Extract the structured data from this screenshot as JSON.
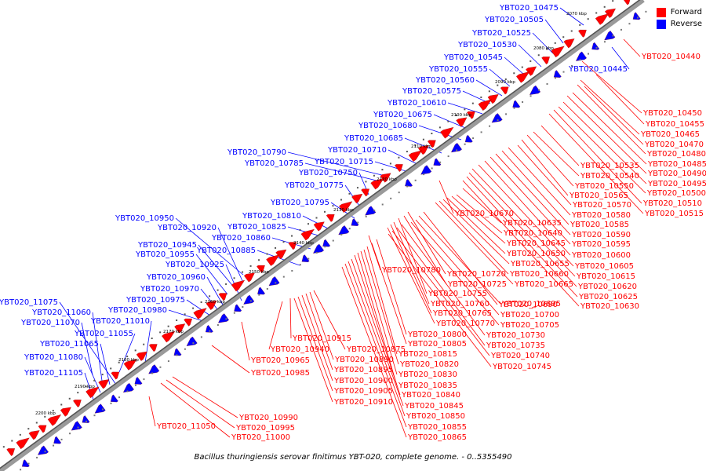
{
  "caption": "Bacillus thuringiensis serovar finitimus YBT-020, complete genome. - 0..5355490",
  "legend": [
    {
      "label": "Forward",
      "color": "#ff0000"
    },
    {
      "label": "Reverse",
      "color": "#0000ff"
    }
  ],
  "colors": {
    "forward": "#ff0000",
    "reverse": "#0000ff",
    "backbone": "#808080"
  },
  "ticks": [
    "2070 kbp",
    "2080 kbp",
    "2090 kbp",
    "2100 kbp",
    "2110 kbp",
    "2120 kbp",
    "2130 kbp",
    "2140 kbp",
    "2150 kbp",
    "2160 kbp",
    "2170 kbp",
    "2180 kbp",
    "2190 kbp",
    "2200 kbp"
  ],
  "reverse_labels": [
    "YBT020_10475",
    "YBT020_10505",
    "YBT020_10525",
    "YBT020_10530",
    "YBT020_10545",
    "YBT020_10555",
    "YBT020_10560",
    "YBT020_10575",
    "YBT020_10610",
    "YBT020_10675",
    "YBT020_10680",
    "YBT020_10685",
    "YBT020_10710",
    "YBT020_10715",
    "YBT020_10790",
    "YBT020_10785",
    "YBT020_10750",
    "YBT020_10775",
    "YBT020_10795",
    "YBT020_10810",
    "YBT020_10825",
    "YBT020_10860",
    "YBT020_10885",
    "YBT020_10950",
    "YBT020_10920",
    "YBT020_10945",
    "YBT020_10955",
    "YBT020_10925",
    "YBT020_10960",
    "YBT020_10970",
    "YBT020_10975",
    "YBT020_10980",
    "YBT020_11075",
    "YBT020_11060",
    "YBT020_11070",
    "YBT020_11010",
    "YBT020_11055",
    "YBT020_11065",
    "YBT020_11080",
    "YBT020_11105",
    "YBT020_10445"
  ],
  "forward_right_labels": [
    "YBT020_10440",
    "YBT020_10450",
    "YBT020_10455",
    "YBT020_10465",
    "YBT020_10470",
    "YBT020_10480",
    "YBT020_10485",
    "YBT020_10490",
    "YBT020_10495",
    "YBT020_10500",
    "YBT020_10510",
    "YBT020_10515"
  ],
  "forward_mid_labels": [
    "YBT020_10535",
    "YBT020_10540",
    "YBT020_10550",
    "YBT020_10565",
    "YBT020_10570",
    "YBT020_10580",
    "YBT020_10585",
    "YBT020_10590",
    "YBT020_10595",
    "YBT020_10600",
    "YBT020_10605",
    "YBT020_10615",
    "YBT020_10620",
    "YBT020_10625",
    "YBT020_10630"
  ],
  "forward_c3_labels": [
    "YBT020_10670",
    "YBT020_10635",
    "YBT020_10640",
    "YBT020_10645",
    "YBT020_10650",
    "YBT020_10655",
    "YBT020_10660",
    "YBT020_10665"
  ],
  "forward_c4_labels": [
    "YBT020_10720",
    "YBT020_10725",
    "YBT020_10755",
    "YBT020_10760",
    "YBT020_10765",
    "YBT020_10770",
    "YBT020_10690",
    "YBT020_10695",
    "YBT020_10700",
    "YBT020_10705",
    "YBT020_10730",
    "YBT020_10735",
    "YBT020_10740",
    "YBT020_10745"
  ],
  "forward_c5_labels": [
    "YBT020_10780",
    "YBT020_10800",
    "YBT020_10805",
    "YBT020_10815",
    "YBT020_10820",
    "YBT020_10830",
    "YBT020_10835",
    "YBT020_10840",
    "YBT020_10845",
    "YBT020_10850",
    "YBT020_10855",
    "YBT020_10865"
  ],
  "forward_c6_labels": [
    "YBT020_10915",
    "YBT020_10940",
    "YBT020_10875",
    "YBT020_10890",
    "YBT020_10895",
    "YBT020_10900",
    "YBT020_10905",
    "YBT020_10910"
  ],
  "forward_c7_labels": [
    "YBT020_10965",
    "YBT020_10985"
  ],
  "forward_c8_labels": [
    "YBT020_10990",
    "YBT020_10995",
    "YBT020_11000",
    "YBT020_11050"
  ]
}
